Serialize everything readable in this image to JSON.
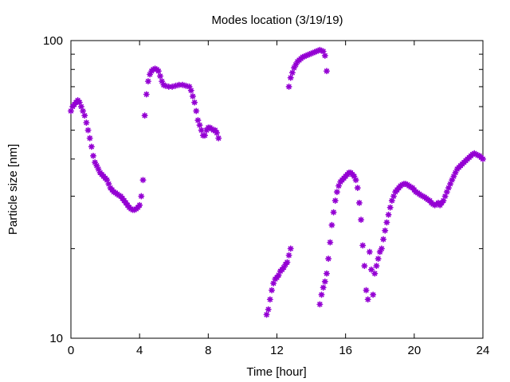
{
  "chart_data": {
    "type": "scatter",
    "title": "Modes location (3/19/19)",
    "xlabel": "Time [hour]",
    "ylabel": "Particle size [nm]",
    "xlim": [
      0,
      24
    ],
    "ylim": [
      10,
      100
    ],
    "yscale": "log",
    "x_ticks": [
      "0",
      "4",
      "8",
      "12",
      "16",
      "20",
      "24"
    ],
    "y_ticks": [
      "10",
      "100"
    ],
    "grid": false,
    "marker_color": "#9400d3",
    "series": [
      {
        "values": [
          [
            0.0,
            58
          ],
          [
            0.1,
            60
          ],
          [
            0.2,
            61
          ],
          [
            0.3,
            62
          ],
          [
            0.4,
            63
          ],
          [
            0.5,
            62
          ],
          [
            0.6,
            60
          ],
          [
            0.7,
            58
          ],
          [
            0.8,
            56
          ],
          [
            0.9,
            53
          ],
          [
            1.0,
            50
          ],
          [
            1.1,
            47
          ],
          [
            1.2,
            44
          ],
          [
            1.3,
            41
          ],
          [
            1.4,
            39
          ],
          [
            1.5,
            38
          ],
          [
            1.6,
            37
          ],
          [
            1.7,
            36
          ],
          [
            1.8,
            35.5
          ],
          [
            1.9,
            35
          ],
          [
            2.0,
            34.5
          ],
          [
            2.1,
            34
          ],
          [
            2.2,
            33
          ],
          [
            2.3,
            32
          ],
          [
            2.4,
            31.5
          ],
          [
            2.5,
            31
          ],
          [
            2.6,
            30.8
          ],
          [
            2.7,
            30.5
          ],
          [
            2.8,
            30.2
          ],
          [
            2.9,
            30
          ],
          [
            3.0,
            29.5
          ],
          [
            3.1,
            29
          ],
          [
            3.2,
            28.5
          ],
          [
            3.3,
            28
          ],
          [
            3.4,
            27.5
          ],
          [
            3.5,
            27.2
          ],
          [
            3.6,
            27
          ],
          [
            3.7,
            27
          ],
          [
            3.8,
            27.2
          ],
          [
            3.9,
            27.5
          ],
          [
            4.0,
            28
          ],
          [
            4.1,
            30
          ],
          [
            4.2,
            34
          ],
          [
            4.3,
            56
          ],
          [
            4.4,
            66
          ],
          [
            4.5,
            73
          ],
          [
            4.6,
            77
          ],
          [
            4.7,
            79
          ],
          [
            4.8,
            80
          ],
          [
            4.9,
            80.5
          ],
          [
            5.0,
            80
          ],
          [
            5.1,
            79
          ],
          [
            5.2,
            76
          ],
          [
            5.3,
            73
          ],
          [
            5.4,
            71
          ],
          [
            5.5,
            70.5
          ],
          [
            5.7,
            70
          ],
          [
            5.9,
            70
          ],
          [
            6.1,
            70.5
          ],
          [
            6.3,
            71
          ],
          [
            6.5,
            71
          ],
          [
            6.7,
            70.5
          ],
          [
            6.9,
            70
          ],
          [
            7.0,
            68
          ],
          [
            7.1,
            65
          ],
          [
            7.2,
            62
          ],
          [
            7.3,
            58
          ],
          [
            7.4,
            54
          ],
          [
            7.5,
            52
          ],
          [
            7.6,
            50
          ],
          [
            7.7,
            48
          ],
          [
            7.8,
            48
          ],
          [
            7.9,
            50
          ],
          [
            8.0,
            51
          ],
          [
            8.1,
            51
          ],
          [
            8.2,
            50.5
          ],
          [
            8.3,
            50
          ],
          [
            8.4,
            50
          ],
          [
            8.5,
            49
          ],
          [
            8.6,
            47
          ]
        ]
      },
      {
        "values": [
          [
            11.4,
            12
          ],
          [
            11.5,
            12.5
          ],
          [
            11.6,
            13.5
          ],
          [
            11.7,
            14.5
          ],
          [
            11.8,
            15.3
          ],
          [
            11.9,
            15.8
          ],
          [
            12.0,
            16
          ],
          [
            12.1,
            16.3
          ],
          [
            12.2,
            16.8
          ],
          [
            12.3,
            17
          ],
          [
            12.4,
            17.3
          ],
          [
            12.5,
            17.7
          ],
          [
            12.6,
            18
          ],
          [
            12.7,
            19
          ],
          [
            12.8,
            20
          ],
          [
            12.7,
            70
          ],
          [
            12.8,
            75
          ],
          [
            12.9,
            78
          ],
          [
            13.0,
            81
          ],
          [
            13.1,
            83
          ],
          [
            13.2,
            85
          ],
          [
            13.3,
            86
          ],
          [
            13.4,
            87
          ],
          [
            13.5,
            88
          ],
          [
            13.6,
            88.5
          ],
          [
            13.7,
            89
          ],
          [
            13.8,
            89.5
          ],
          [
            13.9,
            90
          ],
          [
            14.0,
            90.5
          ],
          [
            14.1,
            91
          ],
          [
            14.2,
            91.5
          ],
          [
            14.3,
            92
          ],
          [
            14.4,
            92.5
          ],
          [
            14.5,
            93
          ],
          [
            14.6,
            92.5
          ],
          [
            14.7,
            92
          ],
          [
            14.8,
            89
          ],
          [
            14.9,
            79
          ]
        ]
      },
      {
        "values": [
          [
            14.5,
            13
          ],
          [
            14.6,
            14
          ],
          [
            14.7,
            14.8
          ],
          [
            14.8,
            15.5
          ],
          [
            14.9,
            16.5
          ],
          [
            15.0,
            18.5
          ],
          [
            15.1,
            21
          ],
          [
            15.2,
            24
          ],
          [
            15.3,
            26.5
          ],
          [
            15.4,
            29
          ],
          [
            15.5,
            31
          ],
          [
            15.6,
            32.5
          ],
          [
            15.7,
            33.5
          ],
          [
            15.8,
            34
          ],
          [
            15.9,
            34.5
          ],
          [
            16.0,
            35
          ],
          [
            16.1,
            35.5
          ],
          [
            16.2,
            36
          ],
          [
            16.3,
            36
          ],
          [
            16.4,
            35.5
          ],
          [
            16.5,
            35
          ],
          [
            16.6,
            34
          ],
          [
            16.7,
            32
          ],
          [
            16.8,
            28.5
          ],
          [
            16.9,
            25
          ],
          [
            17.0,
            20.5
          ],
          [
            17.1,
            17.5
          ],
          [
            17.2,
            14.5
          ],
          [
            17.3,
            13.5
          ],
          [
            17.4,
            19.5
          ],
          [
            17.5,
            17
          ],
          [
            17.6,
            14
          ],
          [
            17.7,
            16.5
          ],
          [
            17.8,
            17.5
          ],
          [
            17.9,
            18.5
          ],
          [
            18.0,
            19.5
          ],
          [
            18.1,
            20
          ],
          [
            18.2,
            21.5
          ],
          [
            18.3,
            23
          ],
          [
            18.4,
            24.5
          ],
          [
            18.5,
            26
          ],
          [
            18.6,
            27.5
          ],
          [
            18.7,
            29
          ],
          [
            18.8,
            30
          ],
          [
            18.9,
            31
          ],
          [
            19.0,
            31.5
          ],
          [
            19.1,
            32
          ],
          [
            19.2,
            32.5
          ],
          [
            19.3,
            32.8
          ],
          [
            19.4,
            33
          ],
          [
            19.5,
            33
          ],
          [
            19.6,
            32.8
          ],
          [
            19.7,
            32.5
          ],
          [
            19.8,
            32.2
          ],
          [
            19.9,
            32
          ],
          [
            20.0,
            31.5
          ],
          [
            20.1,
            31
          ],
          [
            20.2,
            30.8
          ],
          [
            20.3,
            30.5
          ],
          [
            20.4,
            30.2
          ],
          [
            20.5,
            30
          ],
          [
            20.6,
            29.8
          ],
          [
            20.7,
            29.5
          ],
          [
            20.8,
            29.2
          ],
          [
            20.9,
            29
          ],
          [
            21.0,
            28.5
          ],
          [
            21.1,
            28.2
          ],
          [
            21.2,
            28
          ],
          [
            21.3,
            28.2
          ],
          [
            21.4,
            28.5
          ],
          [
            21.5,
            28
          ],
          [
            21.6,
            28.5
          ],
          [
            21.7,
            29
          ],
          [
            21.8,
            30
          ],
          [
            21.9,
            31
          ],
          [
            22.0,
            32
          ],
          [
            22.1,
            33
          ],
          [
            22.2,
            34
          ],
          [
            22.3,
            35
          ],
          [
            22.4,
            36
          ],
          [
            22.5,
            37
          ],
          [
            22.6,
            37.5
          ],
          [
            22.7,
            38
          ],
          [
            22.8,
            38.5
          ],
          [
            22.9,
            39
          ],
          [
            23.0,
            39.5
          ],
          [
            23.1,
            40
          ],
          [
            23.2,
            40.5
          ],
          [
            23.3,
            41
          ],
          [
            23.4,
            41.5
          ],
          [
            23.5,
            41.8
          ],
          [
            23.6,
            41.5
          ],
          [
            23.7,
            41.2
          ],
          [
            23.8,
            41
          ],
          [
            23.9,
            40.5
          ],
          [
            24.0,
            40
          ]
        ]
      }
    ]
  }
}
